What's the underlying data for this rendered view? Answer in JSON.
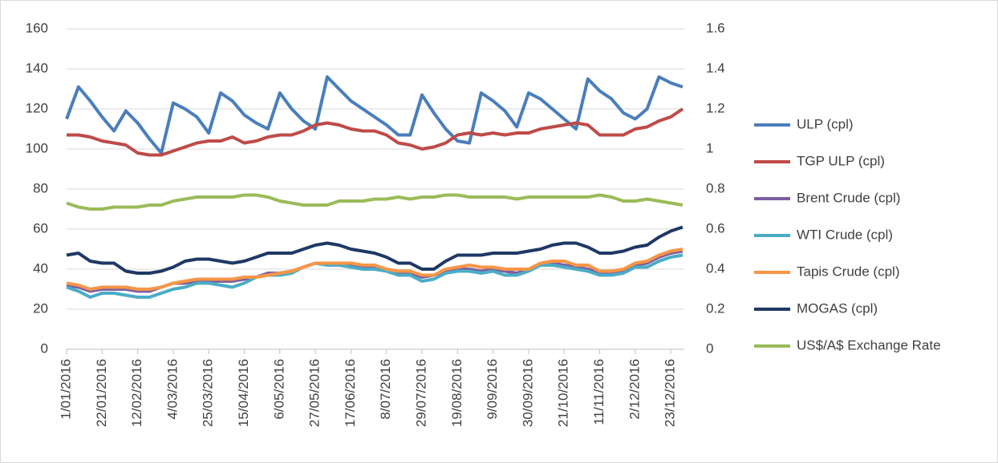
{
  "chart_data": {
    "type": "line",
    "x": [
      "1/01/2016",
      "8/01/2016",
      "15/01/2016",
      "22/01/2016",
      "29/01/2016",
      "5/02/2016",
      "12/02/2016",
      "19/02/2016",
      "26/02/2016",
      "4/03/2016",
      "11/03/2016",
      "18/03/2016",
      "25/03/2016",
      "1/04/2016",
      "8/04/2016",
      "15/04/2016",
      "22/04/2016",
      "29/04/2016",
      "6/05/2016",
      "13/05/2016",
      "20/05/2016",
      "27/05/2016",
      "3/06/2016",
      "10/06/2016",
      "17/06/2016",
      "24/06/2016",
      "1/07/2016",
      "8/07/2016",
      "15/07/2016",
      "22/07/2016",
      "29/07/2016",
      "5/08/2016",
      "12/08/2016",
      "19/08/2016",
      "26/08/2016",
      "2/09/2016",
      "9/09/2016",
      "16/09/2016",
      "23/09/2016",
      "30/09/2016",
      "7/10/2016",
      "14/10/2016",
      "21/10/2016",
      "28/10/2016",
      "4/11/2016",
      "11/11/2016",
      "18/11/2016",
      "25/11/2016",
      "2/12/2016",
      "9/12/2016",
      "16/12/2016",
      "23/12/2016",
      "30/12/2016"
    ],
    "xticks": [
      "1/01/2016",
      "22/01/2016",
      "12/02/2016",
      "4/03/2016",
      "25/03/2016",
      "15/04/2016",
      "6/05/2016",
      "27/05/2016",
      "17/06/2016",
      "8/07/2016",
      "29/07/2016",
      "19/08/2016",
      "9/09/2016",
      "30/09/2016",
      "21/10/2016",
      "11/11/2016",
      "2/12/2016",
      "23/12/2016"
    ],
    "ylim": [
      0,
      160
    ],
    "yticks": [
      0,
      20,
      40,
      60,
      80,
      100,
      120,
      140,
      160
    ],
    "y2lim": [
      0,
      1.6
    ],
    "y2ticks": [
      0,
      0.2,
      0.4,
      0.6,
      0.8,
      1,
      1.2,
      1.4,
      1.6
    ],
    "series": [
      {
        "name": "ULP (cpl)",
        "color": "#4a7ebb",
        "values": [
          115,
          131,
          124,
          116,
          109,
          119,
          113,
          105,
          98,
          123,
          120,
          116,
          108,
          128,
          124,
          117,
          113,
          110,
          128,
          120,
          114,
          110,
          136,
          130,
          124,
          120,
          116,
          112,
          107,
          107,
          127,
          118,
          110,
          104,
          103,
          128,
          124,
          119,
          111,
          128,
          125,
          120,
          115,
          110,
          135,
          129,
          125,
          118,
          115,
          120,
          136,
          133,
          131
        ]
      },
      {
        "name": "TGP ULP (cpl)",
        "color": "#be4b48",
        "values": [
          107,
          107,
          106,
          104,
          103,
          102,
          98,
          97,
          97,
          99,
          101,
          103,
          104,
          104,
          106,
          103,
          104,
          106,
          107,
          107,
          109,
          112,
          113,
          112,
          110,
          109,
          109,
          107,
          103,
          102,
          100,
          101,
          103,
          107,
          108,
          107,
          108,
          107,
          108,
          108,
          110,
          111,
          112,
          113,
          112,
          107,
          107,
          107,
          110,
          111,
          114,
          116,
          120
        ]
      },
      {
        "name": "Brent Crude (cpl)",
        "color": "#7d5fa0",
        "values": [
          32,
          31,
          29,
          30,
          30,
          30,
          29,
          29,
          31,
          33,
          33,
          34,
          34,
          34,
          34,
          35,
          36,
          38,
          38,
          39,
          41,
          43,
          43,
          43,
          42,
          41,
          41,
          40,
          38,
          38,
          36,
          37,
          39,
          40,
          40,
          39,
          40,
          39,
          38,
          40,
          42,
          43,
          42,
          41,
          40,
          38,
          38,
          39,
          42,
          43,
          46,
          48,
          49
        ]
      },
      {
        "name": "WTI Crude (cpl)",
        "color": "#4bacc6",
        "values": [
          31,
          29,
          26,
          28,
          28,
          27,
          26,
          26,
          28,
          30,
          31,
          33,
          33,
          32,
          31,
          33,
          36,
          37,
          37,
          38,
          41,
          43,
          42,
          42,
          41,
          40,
          40,
          39,
          37,
          37,
          34,
          35,
          38,
          39,
          39,
          38,
          39,
          37,
          37,
          39,
          42,
          42,
          41,
          40,
          39,
          37,
          37,
          38,
          41,
          41,
          44,
          46,
          47
        ]
      },
      {
        "name": "Tapis Crude (cpl)",
        "color": "#f79646",
        "values": [
          33,
          32,
          30,
          31,
          31,
          31,
          30,
          30,
          31,
          33,
          34,
          35,
          35,
          35,
          35,
          36,
          36,
          37,
          38,
          39,
          41,
          43,
          43,
          43,
          43,
          42,
          42,
          40,
          39,
          39,
          37,
          37,
          40,
          41,
          42,
          41,
          41,
          40,
          40,
          40,
          43,
          44,
          44,
          42,
          42,
          39,
          39,
          40,
          43,
          44,
          47,
          49,
          50
        ]
      },
      {
        "name": "MOGAS (cpl)",
        "color": "#1f3864",
        "values": [
          47,
          48,
          44,
          43,
          43,
          39,
          38,
          38,
          39,
          41,
          44,
          45,
          45,
          44,
          43,
          44,
          46,
          48,
          48,
          48,
          50,
          52,
          53,
          52,
          50,
          49,
          48,
          46,
          43,
          43,
          40,
          40,
          44,
          47,
          47,
          47,
          48,
          48,
          48,
          49,
          50,
          52,
          53,
          53,
          51,
          48,
          48,
          49,
          51,
          52,
          56,
          59,
          61
        ]
      },
      {
        "name": "US$/A$ Exchange Rate",
        "color": "#9bbb59",
        "axis": "y2",
        "values": [
          0.73,
          0.71,
          0.7,
          0.7,
          0.71,
          0.71,
          0.71,
          0.72,
          0.72,
          0.74,
          0.75,
          0.76,
          0.76,
          0.76,
          0.76,
          0.77,
          0.77,
          0.76,
          0.74,
          0.73,
          0.72,
          0.72,
          0.72,
          0.74,
          0.74,
          0.74,
          0.75,
          0.75,
          0.76,
          0.75,
          0.76,
          0.76,
          0.77,
          0.77,
          0.76,
          0.76,
          0.76,
          0.76,
          0.75,
          0.76,
          0.76,
          0.76,
          0.76,
          0.76,
          0.76,
          0.77,
          0.76,
          0.74,
          0.74,
          0.75,
          0.74,
          0.73,
          0.72
        ]
      }
    ],
    "grid": true,
    "legend": "right"
  }
}
